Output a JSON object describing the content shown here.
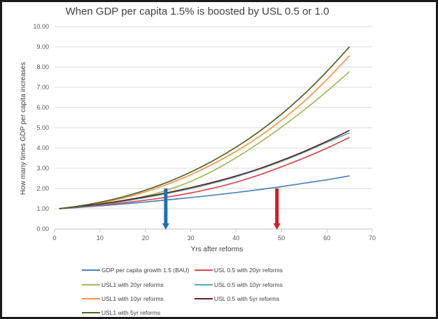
{
  "chart_data": {
    "type": "line",
    "title": "When GDP per capita 1.5% is boosted by USL 0.5 or 1.0",
    "xlabel": "Yrs after reforms",
    "ylabel": "How many times GDP per capita increases",
    "xlim": [
      0,
      70
    ],
    "ylim": [
      0,
      10
    ],
    "x_ticks": [
      "0",
      "10",
      "20",
      "30",
      "40",
      "50",
      "60",
      "70"
    ],
    "y_ticks": [
      "0.00",
      "1.00",
      "2.00",
      "3.00",
      "4.00",
      "5.00",
      "6.00",
      "7.00",
      "8.00",
      "9.00",
      "10.00"
    ],
    "grid": "horizontal",
    "legend_position": "bottom",
    "x": [
      1,
      5,
      10,
      15,
      20,
      25,
      30,
      35,
      40,
      45,
      50,
      55,
      60,
      65
    ],
    "series": [
      {
        "name": "GDP per capita growth 1.5 (BAU)",
        "color": "#4f81bd",
        "values": [
          1.0,
          1.06,
          1.14,
          1.23,
          1.33,
          1.44,
          1.55,
          1.67,
          1.8,
          1.94,
          2.09,
          2.26,
          2.43,
          2.62
        ]
      },
      {
        "name": "USL 0.5 with 20yr reforms",
        "color": "#d9494b",
        "values": [
          1.0,
          1.07,
          1.17,
          1.29,
          1.42,
          1.58,
          1.78,
          2.02,
          2.31,
          2.66,
          3.07,
          3.51,
          3.99,
          4.52
        ]
      },
      {
        "name": "USL1 with 20yr reforms",
        "color": "#9bbb59",
        "values": [
          1.0,
          1.08,
          1.21,
          1.39,
          1.62,
          1.93,
          2.35,
          2.88,
          3.52,
          4.24,
          5.03,
          5.88,
          6.8,
          7.77
        ]
      },
      {
        "name": "USL 0.5 with 10yr reforms",
        "color": "#4bacc6",
        "values": [
          1.0,
          1.08,
          1.2,
          1.36,
          1.55,
          1.76,
          2.0,
          2.27,
          2.58,
          2.94,
          3.34,
          3.79,
          4.28,
          4.75
        ]
      },
      {
        "name": "USL1 with 10yr reforms",
        "color": "#f79646",
        "values": [
          1.0,
          1.1,
          1.28,
          1.52,
          1.83,
          2.22,
          2.68,
          3.22,
          3.84,
          4.55,
          5.37,
          6.3,
          7.38,
          8.56
        ]
      },
      {
        "name": "USL 0.5 with 5yr reforms",
        "color": "#632523",
        "values": [
          1.0,
          1.1,
          1.23,
          1.4,
          1.59,
          1.8,
          2.04,
          2.31,
          2.62,
          2.97,
          3.38,
          3.83,
          4.33,
          4.87
        ]
      },
      {
        "name": "USL1 with 5yr reforms",
        "color": "#4f6228",
        "values": [
          1.0,
          1.12,
          1.32,
          1.58,
          1.91,
          2.32,
          2.81,
          3.38,
          4.04,
          4.8,
          5.67,
          6.66,
          7.78,
          9.0
        ]
      }
    ],
    "annotations": [
      {
        "type": "down-arrow",
        "x": 24.5,
        "y_from": 2.0,
        "y_to": 0.0,
        "color": "#1f6fb2"
      },
      {
        "type": "down-arrow",
        "x": 49,
        "y_from": 2.0,
        "y_to": 0.0,
        "color": "#d01c1f"
      }
    ]
  }
}
